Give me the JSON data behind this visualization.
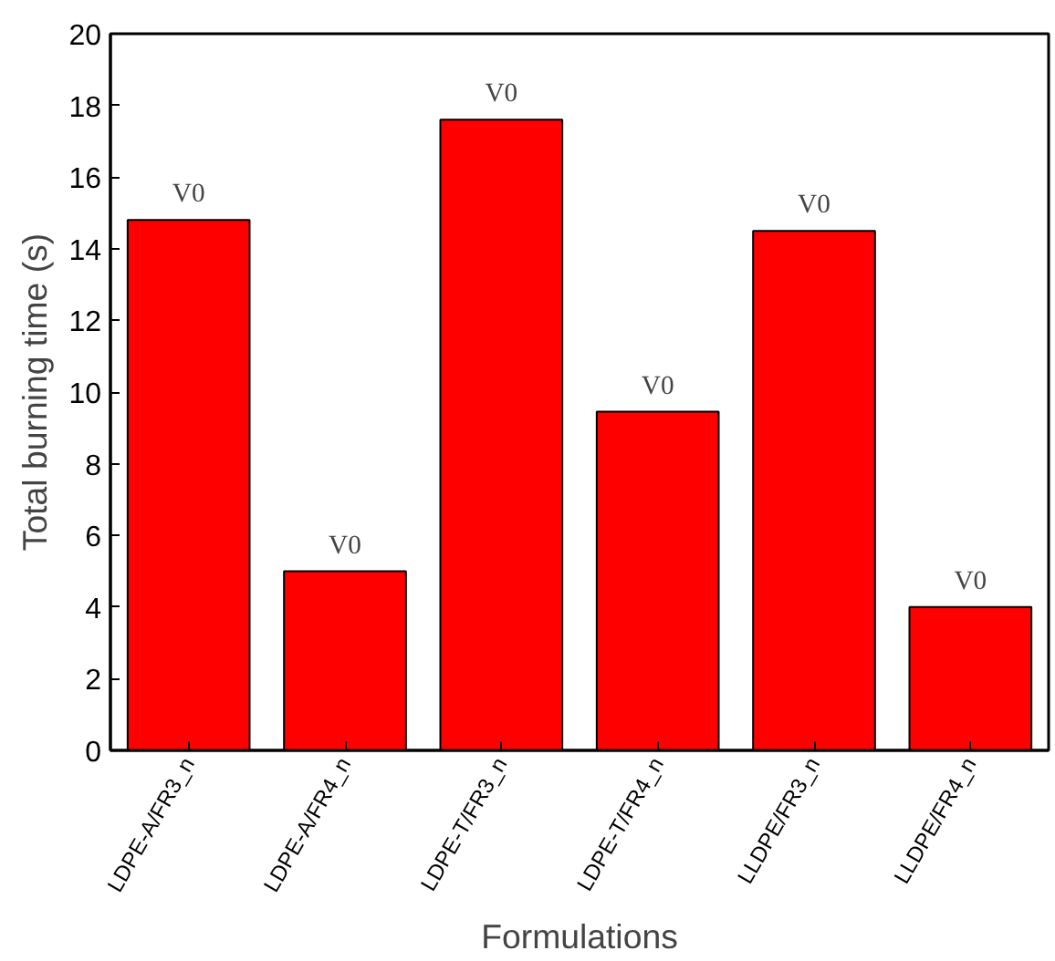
{
  "chart_data": {
    "type": "bar",
    "xlabel": "Formulations",
    "ylabel": "Total burning time (s)",
    "categories": [
      "LDPE-A/FR3_n",
      "LDPE-A/FR4_n",
      "LDPE-T/FR3_n",
      "LDPE-T/FR4_n",
      "LLDPE/FR3_n",
      "LLDPE/FR4_n"
    ],
    "values": [
      14.8,
      5.0,
      17.6,
      9.45,
      14.5,
      4.0
    ],
    "value_labels": [
      "V0",
      "V0",
      "V0",
      "V0",
      "V0",
      "V0"
    ],
    "color": "#ff0000",
    "ylim": [
      0,
      20
    ],
    "yticks": [
      0,
      2,
      4,
      6,
      8,
      10,
      12,
      14,
      16,
      18,
      20
    ],
    "grid": false
  }
}
